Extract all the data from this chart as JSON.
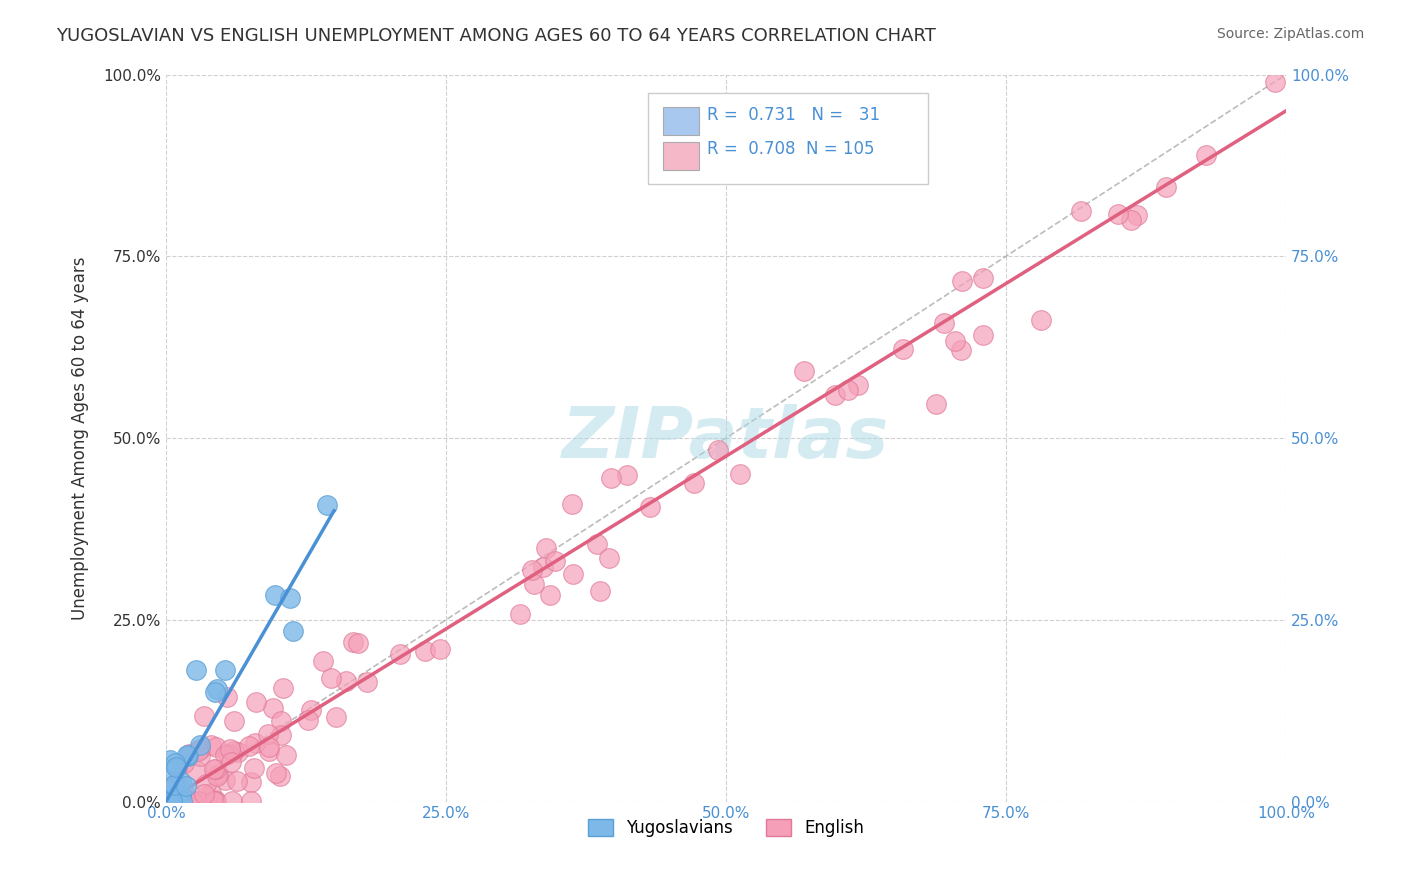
{
  "title": "YUGOSLAVIAN VS ENGLISH UNEMPLOYMENT AMONG AGES 60 TO 64 YEARS CORRELATION CHART",
  "source": "Source: ZipAtlas.com",
  "ylabel": "Unemployment Among Ages 60 to 64 years",
  "x_tick_labels": [
    "0.0%",
    "25.0%",
    "50.0%",
    "75.0%",
    "100.0%"
  ],
  "x_tick_vals": [
    0,
    0.25,
    0.5,
    0.75,
    1.0
  ],
  "y_tick_vals": [
    0,
    0.25,
    0.5,
    0.75,
    1.0
  ],
  "y_tick_labels_left": [
    "0.0%",
    "25.0%",
    "50.0%",
    "75.0%",
    "100.0%"
  ],
  "y_tick_labels_right": [
    "0.0%",
    "25.0%",
    "50.0%",
    "75.0%",
    "100.0%"
  ],
  "background_color": "#ffffff",
  "watermark": "ZIPatlas",
  "watermark_color": "#add8e6",
  "legend_r_yugo": "0.731",
  "legend_n_yugo": "31",
  "legend_r_english": "0.708",
  "legend_n_english": "105",
  "legend_color_yugo": "#a8c8f0",
  "legend_color_english": "#f5b8c8",
  "yugo_scatter_color": "#7db8e8",
  "yugo_scatter_edge": "#5a9fd4",
  "english_scatter_color": "#f5a0b8",
  "english_scatter_edge": "#e07898",
  "yugo_line_color": "#4a90d4",
  "english_line_color": "#e06080",
  "ref_line_color": "#a0a0a0",
  "grid_color": "#d0d0d0",
  "yugo_line_x": [
    0.0,
    0.15
  ],
  "yugo_line_y": [
    0.0,
    0.4
  ],
  "english_line_x": [
    0.0,
    1.0
  ],
  "english_line_y": [
    0.0,
    0.95
  ],
  "ref_line_x": [
    0.0,
    1.0
  ],
  "ref_line_y": [
    0.0,
    1.0
  ]
}
